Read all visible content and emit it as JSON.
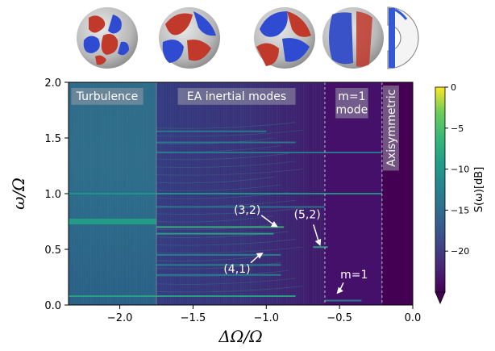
{
  "chart_data": {
    "type": "heatmap",
    "title": "",
    "xlabel": "ΔΩ/Ω",
    "ylabel": "ω/Ω",
    "xlim": [
      -2.35,
      0.0
    ],
    "ylim": [
      0.0,
      2.0
    ],
    "xticks": [
      {
        "value": -2.0,
        "label": "−2.0"
      },
      {
        "value": -1.5,
        "label": "−1.5"
      },
      {
        "value": -1.0,
        "label": "−1.0"
      },
      {
        "value": -0.5,
        "label": "−0.5"
      },
      {
        "value": 0.0,
        "label": "0.0"
      }
    ],
    "yticks": [
      {
        "value": 0.0,
        "label": "0.0"
      },
      {
        "value": 0.5,
        "label": "0.5"
      },
      {
        "value": 1.0,
        "label": "1.0"
      },
      {
        "value": 1.5,
        "label": "1.5"
      },
      {
        "value": 2.0,
        "label": "2.0"
      }
    ],
    "colorbar": {
      "label": "S(ω)[dB]",
      "range": [
        -25,
        0
      ],
      "ticks": [
        {
          "value": 0,
          "label": "0"
        },
        {
          "value": -5,
          "label": "−5"
        },
        {
          "value": -10,
          "label": "−10"
        },
        {
          "value": -15,
          "label": "−15"
        },
        {
          "value": -20,
          "label": "−20"
        }
      ],
      "extend": "min",
      "colormap": "viridis"
    },
    "regions": [
      {
        "label": "Turbulence",
        "x_range": [
          -2.35,
          -1.75
        ]
      },
      {
        "label": "EA inertial modes",
        "x_range": [
          -1.75,
          -0.6
        ]
      },
      {
        "label": "m=1 mode",
        "label_lines": [
          "m=1",
          "mode"
        ],
        "x_range": [
          -0.6,
          -0.21
        ]
      },
      {
        "label": "Axisymmetric",
        "x_range": [
          -0.21,
          0.0
        ]
      }
    ],
    "region_boundaries": [
      -1.75,
      -0.6,
      -0.21
    ],
    "annotations": [
      {
        "text": "(3,2)",
        "text_at": [
          -1.13,
          0.82
        ],
        "arrow_to": [
          -0.92,
          0.7
        ]
      },
      {
        "text": "(4,1)",
        "text_at": [
          -1.2,
          0.29
        ],
        "arrow_to": [
          -1.02,
          0.47
        ]
      },
      {
        "text": "(5,2)",
        "text_at": [
          -0.72,
          0.78
        ],
        "arrow_to": [
          -0.63,
          0.53
        ]
      },
      {
        "text": "m=1",
        "text_at": [
          -0.4,
          0.24
        ],
        "arrow_to": [
          -0.52,
          0.1
        ]
      }
    ],
    "spectral_lines": [
      {
        "name": "rotation",
        "y": 1.0,
        "x_range": [
          -2.35,
          -0.21
        ],
        "level": -10
      },
      {
        "name": "turb-band",
        "y": 0.75,
        "x_range": [
          -2.35,
          -1.75
        ],
        "level": -9,
        "width": 0.05
      },
      {
        "name": "turb-low",
        "y": 0.08,
        "x_range": [
          -2.35,
          -1.75
        ],
        "level": -8
      },
      {
        "name": "(3,2)",
        "y": 0.7,
        "x_range": [
          -1.75,
          -0.88
        ],
        "level": -6
      },
      {
        "name": "(4,1)",
        "y": 0.64,
        "x_range": [
          -1.75,
          -0.95
        ],
        "level": -8
      },
      {
        "name": "(5,2)",
        "y": 0.52,
        "x_range": [
          -0.68,
          -0.58
        ],
        "level": -8
      },
      {
        "name": "low-mode",
        "y": 0.08,
        "x_range": [
          -1.75,
          -0.8
        ],
        "level": -8
      },
      {
        "name": "m=1",
        "y": 0.04,
        "x_range": [
          -0.6,
          -0.35
        ],
        "level": -12
      },
      {
        "name": "upper-1",
        "y": 1.37,
        "x_range": [
          -1.75,
          -0.21
        ],
        "level": -13
      },
      {
        "name": "upper-2",
        "y": 1.46,
        "x_range": [
          -1.75,
          -0.8
        ],
        "level": -13
      },
      {
        "name": "upper-3",
        "y": 1.56,
        "x_range": [
          -1.75,
          -1.0
        ],
        "level": -13
      },
      {
        "name": "mid-1",
        "y": 0.88,
        "x_range": [
          -1.75,
          -0.6
        ],
        "level": -14
      },
      {
        "name": "mid-2",
        "y": 0.45,
        "x_range": [
          -1.75,
          -0.9
        ],
        "level": -12
      },
      {
        "name": "mid-3",
        "y": 0.36,
        "x_range": [
          -1.75,
          -0.9
        ],
        "level": -12
      },
      {
        "name": "mid-4",
        "y": 0.27,
        "x_range": [
          -1.75,
          -0.9
        ],
        "level": -12
      }
    ],
    "insets": [
      {
        "name": "sphere-turbulence",
        "kind": "sphere"
      },
      {
        "name": "sphere-mode-a",
        "kind": "sphere"
      },
      {
        "name": "sphere-mode-b",
        "kind": "sphere"
      },
      {
        "name": "sphere-m1",
        "kind": "sphere"
      },
      {
        "name": "cross-section",
        "kind": "half-section"
      }
    ]
  }
}
